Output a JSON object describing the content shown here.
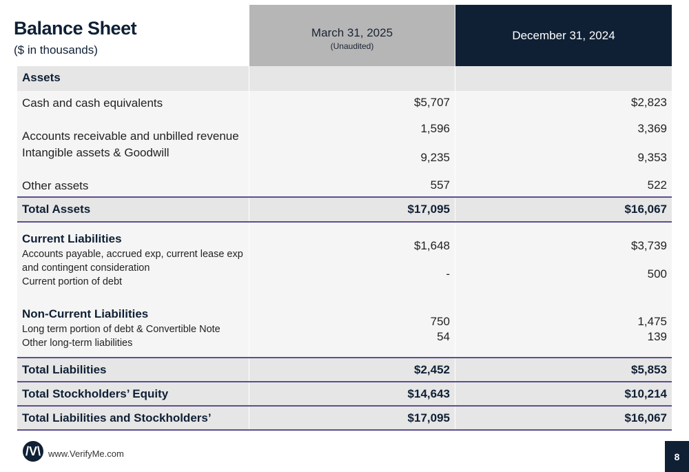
{
  "title": "Balance Sheet",
  "subtitle": "($ in thousands)",
  "columns": {
    "q1_date": "March 31, 2025",
    "q1_note": "(Unaudited)",
    "q2_date": "December 31, 2024"
  },
  "assets": {
    "heading": "Assets",
    "cash_label": "Cash and cash equivalents",
    "cash_q1": "$5,707",
    "cash_q2": "$2,823",
    "ar_label": "Accounts receivable and unbilled revenue",
    "ar_q1": "1,596",
    "ar_q2": "3,369",
    "intang_label": "Intangible assets & Goodwill",
    "intang_q1": "9,235",
    "intang_q2": "9,353",
    "other_label": "Other assets",
    "other_q1": "557",
    "other_q2": "522"
  },
  "total_assets": {
    "label": "Total Assets",
    "q1": "$17,095",
    "q2": "$16,067"
  },
  "current_liabilities": {
    "heading": "Current Liabilities",
    "ap_label_1": "Accounts payable, accrued exp, current lease exp",
    "ap_label_2": "and contingent consideration",
    "ap_q1": "$1,648",
    "ap_q2": "$3,739",
    "debt_label": "Current portion of debt",
    "debt_q1": "-",
    "debt_q2": "500"
  },
  "noncurrent_liabilities": {
    "heading": "Non-Current Liabilities",
    "lt_debt_label": "Long term portion of debt & Convertible Note",
    "lt_debt_q1": "750",
    "lt_debt_q2": "1,475",
    "other_lt_label": "Other long-term liabilities",
    "other_lt_q1": "54",
    "other_lt_q2": "139"
  },
  "total_liabilities": {
    "label": "Total Liabilities",
    "q1": "$2,452",
    "q2": "$5,853"
  },
  "total_equity": {
    "label": "Total Stockholders’ Equity",
    "q1": "$14,643",
    "q2": "$10,214"
  },
  "total_liab_equity": {
    "label": "Total Liabilities and Stockholders’",
    "q1": "$17,095",
    "q2": "$16,067"
  },
  "footer": {
    "logo_text": "/V\\",
    "website": "www.VerifyMe.com",
    "page": "8"
  }
}
